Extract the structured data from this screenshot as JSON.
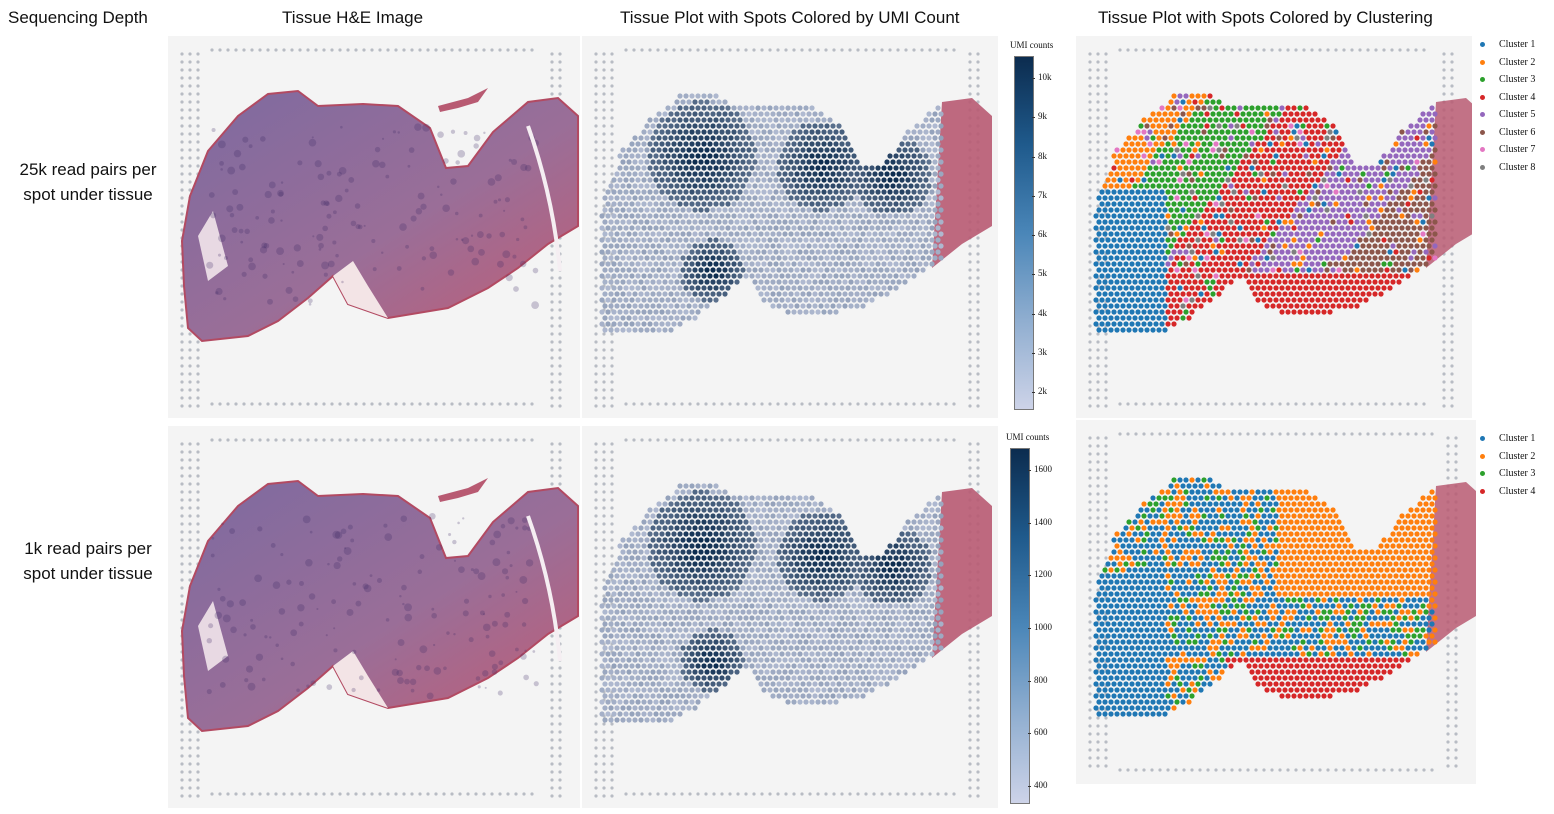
{
  "headers": {
    "depth": "Sequencing Depth",
    "he": "Tissue H&E Image",
    "umi": "Tissue Plot with Spots Colored by UMI Count",
    "clust": "Tissue Plot with Spots Colored by Clustering"
  },
  "rows": [
    {
      "label": "25k read pairs per spot under tissue",
      "umi_scale": {
        "title": "UMI counts",
        "ticks": [
          "10k",
          "9k",
          "8k",
          "7k",
          "6k",
          "5k",
          "4k",
          "3k",
          "2k"
        ]
      },
      "clusters": [
        {
          "label": "Cluster 1",
          "color": "#1f77b4"
        },
        {
          "label": "Cluster 2",
          "color": "#ff7f0e"
        },
        {
          "label": "Cluster 3",
          "color": "#2ca02c"
        },
        {
          "label": "Cluster 4",
          "color": "#d62728"
        },
        {
          "label": "Cluster 5",
          "color": "#9467bd"
        },
        {
          "label": "Cluster 6",
          "color": "#8c564b"
        },
        {
          "label": "Cluster 7",
          "color": "#e377c2"
        },
        {
          "label": "Cluster 8",
          "color": "#7f7f7f"
        }
      ]
    },
    {
      "label": "1k read pairs per spot under tissue",
      "umi_scale": {
        "title": "UMI counts",
        "ticks": [
          "1600",
          "1400",
          "1200",
          "1000",
          "800",
          "600",
          "400"
        ]
      },
      "clusters": [
        {
          "label": "Cluster 1",
          "color": "#1f77b4"
        },
        {
          "label": "Cluster 2",
          "color": "#ff7f0e"
        },
        {
          "label": "Cluster 3",
          "color": "#2ca02c"
        },
        {
          "label": "Cluster 4",
          "color": "#d62728"
        }
      ]
    }
  ]
}
